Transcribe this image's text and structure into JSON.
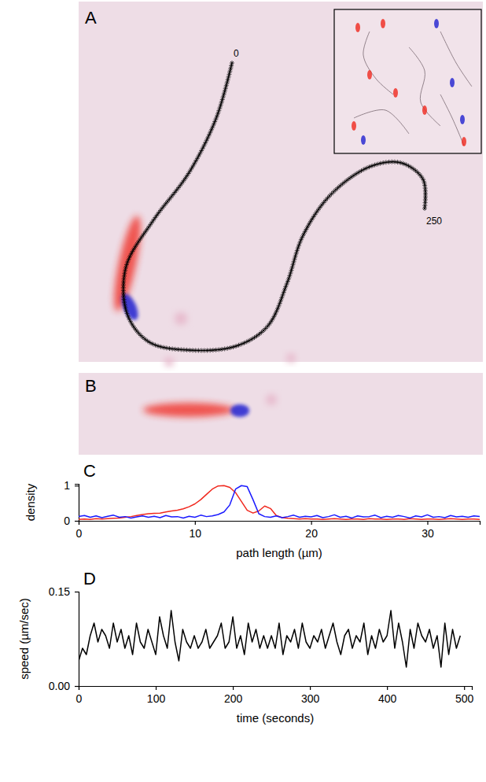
{
  "images": [
    {
      "panel_letter": "A",
      "track_labels": [
        0,
        250
      ]
    },
    {
      "panel_letter": "B"
    }
  ],
  "chart_data": [
    {
      "type": "line",
      "panel_letter": "C",
      "x_label": "path length (µm)",
      "y_label": "density",
      "xlim": [
        0,
        34.5
      ],
      "xticks": [
        0,
        10,
        20,
        30
      ],
      "ylim": [
        0,
        1.05
      ],
      "yticks": [
        0,
        1
      ],
      "x": [
        0,
        0.5,
        1,
        1.5,
        2,
        2.5,
        3,
        3.5,
        4,
        4.5,
        5,
        5.5,
        6,
        6.5,
        7,
        7.5,
        8,
        8.5,
        9,
        9.5,
        10,
        10.5,
        11,
        11.5,
        12,
        12.5,
        13,
        13.5,
        14,
        14.5,
        15,
        15.5,
        16,
        16.5,
        17,
        17.5,
        18,
        18.5,
        19,
        19.5,
        20,
        20.5,
        21,
        21.5,
        22,
        22.5,
        23,
        23.5,
        24,
        24.5,
        25,
        25.5,
        26,
        26.5,
        27,
        27.5,
        28,
        28.5,
        29,
        29.5,
        30,
        30.5,
        31,
        31.5,
        32,
        32.5,
        33,
        33.5,
        34,
        34.5
      ],
      "series": [
        {
          "color": "#f0281e",
          "values": [
            0.04,
            0.05,
            0.04,
            0.06,
            0.05,
            0.06,
            0.07,
            0.08,
            0.1,
            0.12,
            0.15,
            0.18,
            0.2,
            0.21,
            0.22,
            0.25,
            0.28,
            0.3,
            0.34,
            0.4,
            0.48,
            0.6,
            0.75,
            0.9,
            0.99,
            1.0,
            0.95,
            0.8,
            0.55,
            0.3,
            0.22,
            0.28,
            0.42,
            0.35,
            0.15,
            0.09,
            0.07,
            0.06,
            0.05,
            0.06,
            0.05,
            0.05,
            0.04,
            0.05,
            0.06,
            0.05,
            0.04,
            0.05,
            0.05,
            0.04,
            0.06,
            0.05,
            0.05,
            0.04,
            0.05,
            0.05,
            0.04,
            0.06,
            0.05,
            0.04,
            0.05,
            0.05,
            0.04,
            0.05,
            0.06,
            0.05,
            0.04,
            0.05,
            0.05,
            0.04
          ]
        },
        {
          "color": "#1a1aff",
          "values": [
            0.12,
            0.15,
            0.1,
            0.14,
            0.09,
            0.13,
            0.16,
            0.1,
            0.12,
            0.08,
            0.11,
            0.14,
            0.1,
            0.13,
            0.09,
            0.15,
            0.11,
            0.12,
            0.08,
            0.13,
            0.1,
            0.16,
            0.12,
            0.14,
            0.18,
            0.25,
            0.45,
            0.9,
            1.0,
            0.97,
            0.6,
            0.2,
            0.12,
            0.1,
            0.14,
            0.09,
            0.12,
            0.16,
            0.1,
            0.13,
            0.11,
            0.15,
            0.09,
            0.12,
            0.17,
            0.1,
            0.13,
            0.08,
            0.14,
            0.11,
            0.12,
            0.16,
            0.09,
            0.13,
            0.1,
            0.15,
            0.12,
            0.08,
            0.14,
            0.11,
            0.17,
            0.1,
            0.12,
            0.09,
            0.15,
            0.11,
            0.13,
            0.1,
            0.14,
            0.12
          ]
        }
      ]
    },
    {
      "type": "line",
      "panel_letter": "D",
      "x_label": "time (seconds)",
      "y_label": "speed (µm/sec)",
      "xlim": [
        0,
        510
      ],
      "xticks": [
        0,
        100,
        200,
        300,
        400,
        500
      ],
      "ylim": [
        0,
        0.15
      ],
      "yticks": [
        {
          "value": 0,
          "label": "0.00"
        },
        {
          "value": 0.15,
          "label": "0.15"
        }
      ],
      "x": [
        0,
        5,
        10,
        15,
        20,
        25,
        30,
        35,
        40,
        45,
        50,
        55,
        60,
        65,
        70,
        75,
        80,
        85,
        90,
        95,
        100,
        105,
        110,
        115,
        120,
        125,
        130,
        135,
        140,
        145,
        150,
        155,
        160,
        165,
        170,
        175,
        180,
        185,
        190,
        195,
        200,
        205,
        210,
        215,
        220,
        225,
        230,
        235,
        240,
        245,
        250,
        255,
        260,
        265,
        270,
        275,
        280,
        285,
        290,
        295,
        300,
        305,
        310,
        315,
        320,
        325,
        330,
        335,
        340,
        345,
        350,
        355,
        360,
        365,
        370,
        375,
        380,
        385,
        390,
        395,
        400,
        405,
        410,
        415,
        420,
        425,
        430,
        435,
        440,
        445,
        450,
        455,
        460,
        465,
        470,
        475,
        480,
        485,
        490,
        495
      ],
      "series": [
        {
          "color": "#000000",
          "values": [
            0.04,
            0.06,
            0.05,
            0.08,
            0.1,
            0.07,
            0.09,
            0.08,
            0.06,
            0.1,
            0.07,
            0.09,
            0.06,
            0.08,
            0.05,
            0.1,
            0.07,
            0.06,
            0.09,
            0.07,
            0.05,
            0.11,
            0.08,
            0.06,
            0.12,
            0.07,
            0.04,
            0.09,
            0.07,
            0.06,
            0.08,
            0.06,
            0.07,
            0.09,
            0.06,
            0.07,
            0.08,
            0.1,
            0.06,
            0.07,
            0.11,
            0.06,
            0.08,
            0.05,
            0.1,
            0.07,
            0.09,
            0.06,
            0.08,
            0.06,
            0.08,
            0.06,
            0.1,
            0.05,
            0.08,
            0.07,
            0.09,
            0.06,
            0.1,
            0.07,
            0.06,
            0.08,
            0.07,
            0.09,
            0.06,
            0.08,
            0.1,
            0.07,
            0.05,
            0.08,
            0.09,
            0.06,
            0.08,
            0.07,
            0.1,
            0.05,
            0.08,
            0.06,
            0.09,
            0.07,
            0.08,
            0.12,
            0.06,
            0.1,
            0.07,
            0.03,
            0.09,
            0.06,
            0.1,
            0.08,
            0.07,
            0.09,
            0.06,
            0.08,
            0.03,
            0.1,
            0.05,
            0.09,
            0.06,
            0.08
          ]
        }
      ]
    }
  ]
}
